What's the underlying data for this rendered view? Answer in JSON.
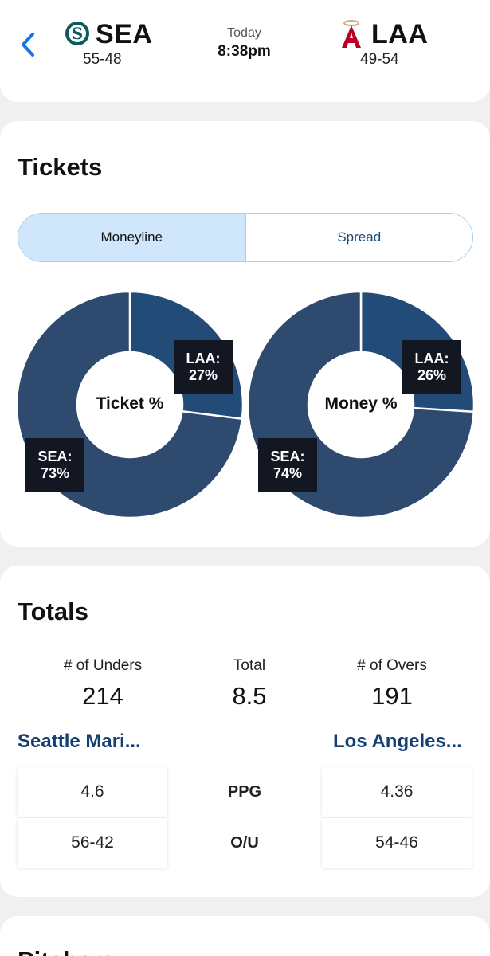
{
  "header": {
    "away": {
      "abbr": "SEA",
      "record": "55-48"
    },
    "home": {
      "abbr": "LAA",
      "record": "49-54"
    },
    "day": "Today",
    "time": "8:38pm"
  },
  "tickets": {
    "title": "Tickets",
    "tabs": [
      {
        "label": "Moneyline",
        "active": true
      },
      {
        "label": "Spread",
        "active": false
      }
    ],
    "charts": [
      {
        "center_label": "Ticket %",
        "slices": [
          {
            "team": "LAA",
            "percent": 27,
            "label": "LAA:\n27%"
          },
          {
            "team": "SEA",
            "percent": 73,
            "label": "SEA:\n73%"
          }
        ]
      },
      {
        "center_label": "Money %",
        "slices": [
          {
            "team": "LAA",
            "percent": 26,
            "label": "LAA:\n26%"
          },
          {
            "team": "SEA",
            "percent": 74,
            "label": "SEA:\n74%"
          }
        ]
      }
    ],
    "colors": {
      "laa": "#234b78",
      "sea": "#2f4a6f"
    }
  },
  "totals": {
    "title": "Totals",
    "unders_label": "# of Unders",
    "unders": "214",
    "total_label": "Total",
    "total": "8.5",
    "overs_label": "# of Overs",
    "overs": "191",
    "away_team": "Seattle Mari...",
    "home_team": "Los Angeles...",
    "rows": [
      {
        "metric": "PPG",
        "away": "4.6",
        "home": "4.36"
      },
      {
        "metric": "O/U",
        "away": "56-42",
        "home": "54-46"
      }
    ]
  },
  "pitchers": {
    "title": "Pitchers"
  }
}
